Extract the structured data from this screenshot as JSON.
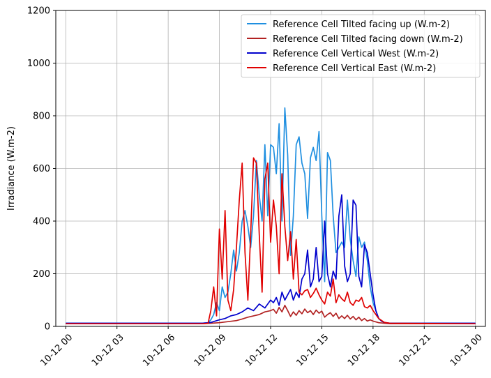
{
  "chart_data": {
    "type": "line",
    "title": "",
    "xlabel": "",
    "ylabel": "Irradiance (W.m-2)",
    "ylim": [
      0,
      1200
    ],
    "xlim": [
      "2023-10-11T23:25",
      "2023-10-13T00:35"
    ],
    "y_ticks": [
      "0",
      "200",
      "400",
      "600",
      "800",
      "1000",
      "1200"
    ],
    "x_ticks": [
      {
        "t": "2023-10-12T00:00",
        "label": "10-12 00"
      },
      {
        "t": "2023-10-12T03:00",
        "label": "10-12 03"
      },
      {
        "t": "2023-10-12T06:00",
        "label": "10-12 06"
      },
      {
        "t": "2023-10-12T09:00",
        "label": "10-12 09"
      },
      {
        "t": "2023-10-12T12:00",
        "label": "10-12 12"
      },
      {
        "t": "2023-10-12T15:00",
        "label": "10-12 15"
      },
      {
        "t": "2023-10-12T18:00",
        "label": "10-12 18"
      },
      {
        "t": "2023-10-12T21:00",
        "label": "10-12 21"
      },
      {
        "t": "2023-10-13T00:00",
        "label": "10-13 00"
      }
    ],
    "grid": true,
    "legend_position": "top-right",
    "series": [
      {
        "name": "Reference Cell Tilted facing up (W.m-2)",
        "color": "#1f8fe0",
        "x": [
          "2023-10-12T00:00",
          "2023-10-12T08:00",
          "2023-10-12T08:20",
          "2023-10-12T08:30",
          "2023-10-12T08:40",
          "2023-10-12T08:50",
          "2023-10-12T09:00",
          "2023-10-12T09:10",
          "2023-10-12T09:20",
          "2023-10-12T09:30",
          "2023-10-12T09:40",
          "2023-10-12T09:50",
          "2023-10-12T10:00",
          "2023-10-12T10:10",
          "2023-10-12T10:20",
          "2023-10-12T10:30",
          "2023-10-12T10:40",
          "2023-10-12T10:50",
          "2023-10-12T11:00",
          "2023-10-12T11:10",
          "2023-10-12T11:20",
          "2023-10-12T11:30",
          "2023-10-12T11:40",
          "2023-10-12T11:50",
          "2023-10-12T12:00",
          "2023-10-12T12:10",
          "2023-10-12T12:20",
          "2023-10-12T12:30",
          "2023-10-12T12:40",
          "2023-10-12T12:50",
          "2023-10-12T13:00",
          "2023-10-12T13:10",
          "2023-10-12T13:20",
          "2023-10-12T13:30",
          "2023-10-12T13:40",
          "2023-10-12T13:50",
          "2023-10-12T14:00",
          "2023-10-12T14:10",
          "2023-10-12T14:20",
          "2023-10-12T14:30",
          "2023-10-12T14:40",
          "2023-10-12T14:50",
          "2023-10-12T15:00",
          "2023-10-12T15:10",
          "2023-10-12T15:20",
          "2023-10-12T15:30",
          "2023-10-12T15:40",
          "2023-10-12T15:50",
          "2023-10-12T16:00",
          "2023-10-12T16:10",
          "2023-10-12T16:20",
          "2023-10-12T16:30",
          "2023-10-12T16:40",
          "2023-10-12T16:50",
          "2023-10-12T17:00",
          "2023-10-12T17:10",
          "2023-10-12T17:20",
          "2023-10-12T17:30",
          "2023-10-12T17:40",
          "2023-10-12T17:50",
          "2023-10-12T18:00",
          "2023-10-12T18:10",
          "2023-10-12T18:20",
          "2023-10-12T18:30",
          "2023-10-12T18:40",
          "2023-10-12T18:50",
          "2023-10-12T19:00",
          "2023-10-13T00:00"
        ],
        "y": [
          12,
          12,
          14,
          25,
          45,
          90,
          60,
          150,
          110,
          130,
          200,
          290,
          210,
          280,
          400,
          440,
          380,
          300,
          420,
          630,
          500,
          400,
          690,
          420,
          690,
          680,
          580,
          770,
          400,
          830,
          650,
          270,
          420,
          690,
          720,
          620,
          580,
          410,
          640,
          680,
          630,
          740,
          420,
          170,
          660,
          630,
          420,
          280,
          300,
          320,
          300,
          480,
          330,
          250,
          190,
          340,
          300,
          320,
          250,
          150,
          90,
          60,
          30,
          20,
          14,
          12,
          12,
          12
        ]
      },
      {
        "name": "Reference Cell Tilted facing down (W.m-2)",
        "color": "#b22222",
        "x": [
          "2023-10-12T00:00",
          "2023-10-12T08:00",
          "2023-10-12T08:30",
          "2023-10-12T09:00",
          "2023-10-12T09:30",
          "2023-10-12T10:00",
          "2023-10-12T10:20",
          "2023-10-12T10:40",
          "2023-10-12T11:00",
          "2023-10-12T11:20",
          "2023-10-12T11:40",
          "2023-10-12T12:00",
          "2023-10-12T12:10",
          "2023-10-12T12:20",
          "2023-10-12T12:30",
          "2023-10-12T12:40",
          "2023-10-12T12:50",
          "2023-10-12T13:00",
          "2023-10-12T13:10",
          "2023-10-12T13:20",
          "2023-10-12T13:30",
          "2023-10-12T13:40",
          "2023-10-12T13:50",
          "2023-10-12T14:00",
          "2023-10-12T14:10",
          "2023-10-12T14:20",
          "2023-10-12T14:30",
          "2023-10-12T14:40",
          "2023-10-12T14:50",
          "2023-10-12T15:00",
          "2023-10-12T15:10",
          "2023-10-12T15:20",
          "2023-10-12T15:30",
          "2023-10-12T15:40",
          "2023-10-12T15:50",
          "2023-10-12T16:00",
          "2023-10-12T16:10",
          "2023-10-12T16:20",
          "2023-10-12T16:30",
          "2023-10-12T16:40",
          "2023-10-12T16:50",
          "2023-10-12T17:00",
          "2023-10-12T17:10",
          "2023-10-12T17:20",
          "2023-10-12T17:30",
          "2023-10-12T17:40",
          "2023-10-12T17:50",
          "2023-10-12T18:00",
          "2023-10-12T18:20",
          "2023-10-12T18:40",
          "2023-10-12T19:00",
          "2023-10-13T00:00"
        ],
        "y": [
          10,
          10,
          12,
          14,
          18,
          22,
          28,
          35,
          40,
          45,
          55,
          60,
          65,
          50,
          72,
          55,
          80,
          60,
          38,
          55,
          42,
          60,
          48,
          66,
          52,
          60,
          45,
          62,
          50,
          58,
          35,
          45,
          52,
          38,
          50,
          30,
          40,
          30,
          42,
          28,
          38,
          25,
          35,
          22,
          30,
          20,
          25,
          20,
          14,
          12,
          10,
          10
        ]
      },
      {
        "name": "Reference Cell Vertical West (W.m-2)",
        "color": "#0000cc",
        "x": [
          "2023-10-12T00:00",
          "2023-10-12T08:00",
          "2023-10-12T08:30",
          "2023-10-12T09:00",
          "2023-10-12T09:20",
          "2023-10-12T09:40",
          "2023-10-12T10:00",
          "2023-10-12T10:20",
          "2023-10-12T10:40",
          "2023-10-12T11:00",
          "2023-10-12T11:20",
          "2023-10-12T11:40",
          "2023-10-12T12:00",
          "2023-10-12T12:10",
          "2023-10-12T12:20",
          "2023-10-12T12:30",
          "2023-10-12T12:40",
          "2023-10-12T12:50",
          "2023-10-12T13:00",
          "2023-10-12T13:10",
          "2023-10-12T13:20",
          "2023-10-12T13:30",
          "2023-10-12T13:40",
          "2023-10-12T13:50",
          "2023-10-12T14:00",
          "2023-10-12T14:10",
          "2023-10-12T14:20",
          "2023-10-12T14:30",
          "2023-10-12T14:40",
          "2023-10-12T14:50",
          "2023-10-12T15:00",
          "2023-10-12T15:10",
          "2023-10-12T15:20",
          "2023-10-12T15:30",
          "2023-10-12T15:40",
          "2023-10-12T15:50",
          "2023-10-12T16:00",
          "2023-10-12T16:10",
          "2023-10-12T16:20",
          "2023-10-12T16:30",
          "2023-10-12T16:40",
          "2023-10-12T16:50",
          "2023-10-12T17:00",
          "2023-10-12T17:10",
          "2023-10-12T17:20",
          "2023-10-12T17:30",
          "2023-10-12T17:40",
          "2023-10-12T17:50",
          "2023-10-12T18:00",
          "2023-10-12T18:10",
          "2023-10-12T18:20",
          "2023-10-12T18:30",
          "2023-10-12T18:40",
          "2023-10-12T19:00",
          "2023-10-13T00:00"
        ],
        "y": [
          12,
          12,
          15,
          25,
          30,
          40,
          45,
          55,
          70,
          60,
          85,
          70,
          100,
          90,
          110,
          80,
          130,
          100,
          120,
          140,
          100,
          130,
          110,
          180,
          200,
          290,
          150,
          180,
          300,
          170,
          190,
          400,
          200,
          150,
          210,
          180,
          420,
          500,
          230,
          170,
          200,
          480,
          460,
          190,
          150,
          310,
          280,
          200,
          120,
          60,
          30,
          20,
          15,
          12,
          12
        ]
      },
      {
        "name": "Reference Cell Vertical East (W.m-2)",
        "color": "#e00000",
        "x": [
          "2023-10-12T00:00",
          "2023-10-12T08:00",
          "2023-10-12T08:20",
          "2023-10-12T08:30",
          "2023-10-12T08:40",
          "2023-10-12T08:50",
          "2023-10-12T09:00",
          "2023-10-12T09:10",
          "2023-10-12T09:20",
          "2023-10-12T09:30",
          "2023-10-12T09:40",
          "2023-10-12T09:50",
          "2023-10-12T10:00",
          "2023-10-12T10:10",
          "2023-10-12T10:20",
          "2023-10-12T10:30",
          "2023-10-12T10:40",
          "2023-10-12T10:50",
          "2023-10-12T11:00",
          "2023-10-12T11:10",
          "2023-10-12T11:20",
          "2023-10-12T11:30",
          "2023-10-12T11:40",
          "2023-10-12T11:50",
          "2023-10-12T12:00",
          "2023-10-12T12:10",
          "2023-10-12T12:20",
          "2023-10-12T12:30",
          "2023-10-12T12:40",
          "2023-10-12T12:50",
          "2023-10-12T13:00",
          "2023-10-12T13:10",
          "2023-10-12T13:20",
          "2023-10-12T13:30",
          "2023-10-12T13:40",
          "2023-10-12T13:50",
          "2023-10-12T14:00",
          "2023-10-12T14:10",
          "2023-10-12T14:20",
          "2023-10-12T14:30",
          "2023-10-12T14:40",
          "2023-10-12T14:50",
          "2023-10-12T15:00",
          "2023-10-12T15:10",
          "2023-10-12T15:20",
          "2023-10-12T15:30",
          "2023-10-12T15:40",
          "2023-10-12T15:50",
          "2023-10-12T16:00",
          "2023-10-12T16:10",
          "2023-10-12T16:20",
          "2023-10-12T16:30",
          "2023-10-12T16:40",
          "2023-10-12T16:50",
          "2023-10-12T17:00",
          "2023-10-12T17:10",
          "2023-10-12T17:20",
          "2023-10-12T17:30",
          "2023-10-12T17:40",
          "2023-10-12T17:50",
          "2023-10-12T18:00",
          "2023-10-12T18:20",
          "2023-10-12T18:40",
          "2023-10-12T19:00",
          "2023-10-13T00:00"
        ],
        "y": [
          10,
          10,
          12,
          60,
          150,
          40,
          370,
          180,
          440,
          100,
          60,
          140,
          300,
          480,
          620,
          280,
          100,
          350,
          640,
          620,
          350,
          130,
          560,
          620,
          320,
          480,
          380,
          200,
          580,
          380,
          250,
          360,
          180,
          330,
          130,
          120,
          135,
          140,
          110,
          125,
          145,
          120,
          100,
          85,
          130,
          115,
          180,
          90,
          120,
          105,
          95,
          130,
          90,
          80,
          100,
          95,
          110,
          75,
          70,
          80,
          60,
          30,
          15,
          12,
          10
        ]
      }
    ]
  }
}
